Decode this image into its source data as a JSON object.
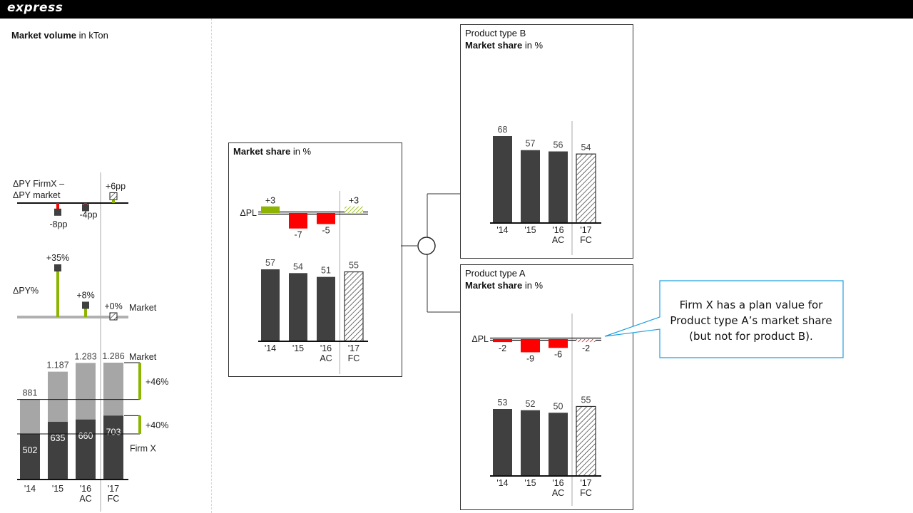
{
  "brand": "express",
  "colors": {
    "bar": "#404040",
    "market": "#a6a6a6",
    "positive": "#8cb400",
    "negative": "#ff0000",
    "hatch": "#333333"
  },
  "volume_section": {
    "title_bold": "Market volume",
    "title_rest": " in kTon",
    "delta_pp_label_line1": "ΔPY FirmX –",
    "delta_pp_label_line2": "ΔPY market",
    "delta_pct_label": "ΔPY%",
    "market_label": "Market",
    "firm_label": "Firm X",
    "growth_market": "+46%",
    "growth_firm": "+40%"
  },
  "market_share_section": {
    "title_bold": "Market share",
    "title_rest": " in %",
    "delta_label": "ΔPL"
  },
  "product_b": {
    "title_line1": "Product type B",
    "title_bold": "Market share",
    "title_rest": " in %"
  },
  "product_a": {
    "title_line1": "Product type A",
    "title_bold": "Market share",
    "title_rest": " in %",
    "delta_label": "ΔPL"
  },
  "callout": {
    "text_line1": "Firm X has a plan value for",
    "text_line2": "Product type A’s market share",
    "text_line3": "(but not for product B)."
  },
  "chart_data": [
    {
      "id": "volume",
      "type": "bar",
      "title": "Market volume in kTon",
      "categories": [
        "'14",
        "'15",
        "'16",
        "'17"
      ],
      "category_sub": [
        "",
        "",
        "AC",
        "FC"
      ],
      "series": [
        {
          "name": "Market",
          "values": [
            881,
            1187,
            1283,
            1286
          ],
          "labels": [
            "881",
            "1.187",
            "1.283",
            "1.286"
          ]
        },
        {
          "name": "Firm X",
          "values": [
            502,
            635,
            660,
            703
          ],
          "labels": [
            "502",
            "635",
            "660",
            "703"
          ]
        }
      ],
      "ylim": [
        0,
        1400
      ]
    },
    {
      "id": "delta_pp",
      "type": "bar",
      "title": "ΔPY FirmX – ΔPY market",
      "categories": [
        "'15",
        "'16",
        "'17"
      ],
      "values": [
        -8,
        -4,
        6
      ],
      "labels": [
        "-8pp",
        "-4pp",
        "+6pp"
      ]
    },
    {
      "id": "delta_pct",
      "type": "bar",
      "title": "ΔPY%",
      "categories": [
        "'15",
        "'16",
        "'17"
      ],
      "values": [
        35,
        8,
        0
      ],
      "labels": [
        "+35%",
        "+8%",
        "+0%"
      ]
    },
    {
      "id": "total",
      "type": "bar",
      "title": "Market share in %",
      "categories": [
        "'14",
        "'15",
        "'16",
        "'17"
      ],
      "category_sub": [
        "",
        "",
        "AC",
        "FC"
      ],
      "values": [
        57,
        54,
        51,
        55
      ],
      "delta_pl": [
        3,
        -7,
        -5,
        3
      ],
      "delta_labels": [
        "+3",
        "-7",
        "-5",
        "+3"
      ]
    },
    {
      "id": "product_b",
      "type": "bar",
      "title": "Product type B Market share in %",
      "categories": [
        "'14",
        "'15",
        "'16",
        "'17"
      ],
      "category_sub": [
        "",
        "",
        "AC",
        "FC"
      ],
      "values": [
        68,
        57,
        56,
        54
      ]
    },
    {
      "id": "product_a",
      "type": "bar",
      "title": "Product type A Market share in %",
      "categories": [
        "'14",
        "'15",
        "'16",
        "'17"
      ],
      "category_sub": [
        "",
        "",
        "AC",
        "FC"
      ],
      "values": [
        53,
        52,
        50,
        55
      ],
      "delta_pl": [
        -2,
        -9,
        -6,
        -2
      ],
      "delta_labels": [
        "-2",
        "-9",
        "-6",
        "-2"
      ]
    }
  ]
}
